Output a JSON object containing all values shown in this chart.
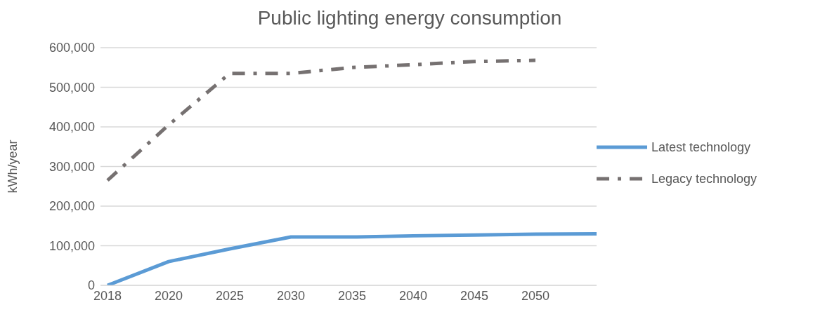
{
  "chart_data": {
    "type": "line",
    "title": "Public lighting energy consumption",
    "ylabel": "kWh/year",
    "categories": [
      "2018",
      "2020",
      "2025",
      "2030",
      "2035",
      "2040",
      "2045",
      "2050",
      null
    ],
    "series": [
      {
        "name": "Latest technology",
        "color": "#5b9bd5",
        "line_style": "solid",
        "values": [
          0,
          60000,
          92000,
          122000,
          122000,
          125000,
          127000,
          129000,
          130000
        ]
      },
      {
        "name": "Legacy technology",
        "color": "#767171",
        "line_style": "dashed",
        "values": [
          265000,
          405000,
          535000,
          535000,
          550000,
          557000,
          565000,
          568000,
          null
        ]
      }
    ],
    "ylim": [
      0,
      600000
    ],
    "yticks": [
      {
        "value": 0,
        "label": "0"
      },
      {
        "value": 100000,
        "label": "100,000"
      },
      {
        "value": 200000,
        "label": "200,000"
      },
      {
        "value": 300000,
        "label": "300,000"
      },
      {
        "value": 400000,
        "label": "400,000"
      },
      {
        "value": 500000,
        "label": "500,000"
      },
      {
        "value": 600000,
        "label": "600,000"
      }
    ],
    "grid": "y",
    "legend": "right",
    "marker": "none"
  }
}
